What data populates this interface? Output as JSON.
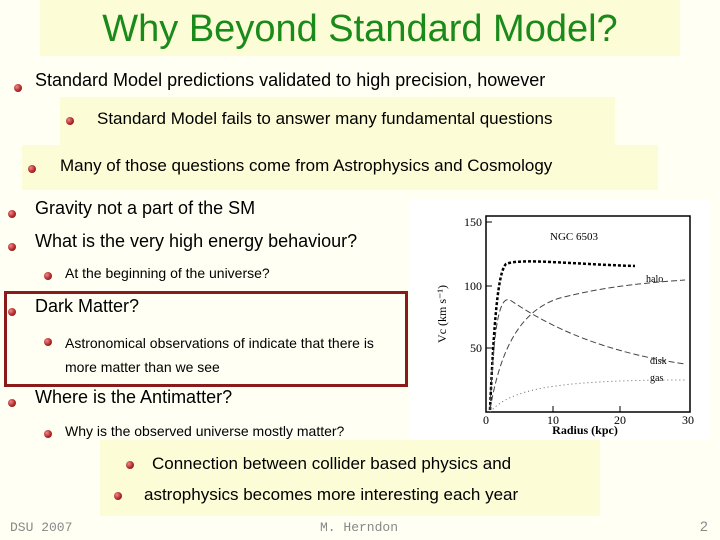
{
  "header": {
    "title": "Why Beyond Standard Model?"
  },
  "bullets": [
    {
      "text": "Standard Model predictions validated to high precision, however"
    },
    {
      "text": "Standard Model fails to answer many fundamental questions"
    },
    {
      "text": "Many of those questions come from Astrophysics and Cosmology"
    },
    {
      "text": "Gravity not a part of the SM"
    },
    {
      "text": "What is the very high energy behaviour?"
    },
    {
      "text": "At the beginning of the universe?"
    },
    {
      "text": "Dark Matter?"
    },
    {
      "text": "Astronomical observations of indicate that there is more matter than we see"
    },
    {
      "text": "Where is the Antimatter?"
    },
    {
      "text": "Why is the observed universe mostly matter?"
    },
    {
      "text": "Connection between collider based physics and"
    },
    {
      "text": "astrophysics becomes more interesting each year"
    }
  ],
  "figure": {
    "title": "NGC 6503",
    "x_label": "Radius (kpc)",
    "y_label": "Vc (km s⁻¹)",
    "xticks": [
      "0",
      "10",
      "20",
      "30"
    ],
    "yticks": [
      "50",
      "100",
      "150"
    ],
    "curve_labels": [
      "halo",
      "disk",
      "gas"
    ]
  },
  "footer": {
    "left": "DSU 2007",
    "center": "M. Herndon",
    "page": "2"
  }
}
